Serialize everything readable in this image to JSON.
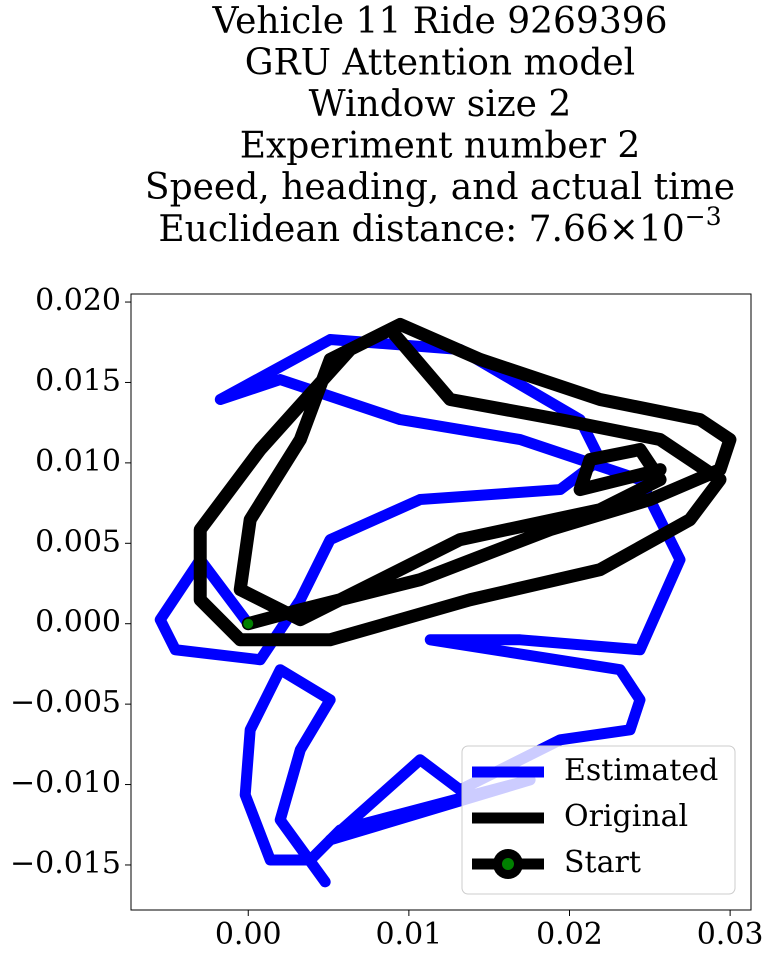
{
  "chart_data": {
    "type": "line",
    "title": [
      "Vehicle 11 Ride 9269396",
      "GRU Attention model",
      "Window size 2",
      "Experiment number 2",
      "Speed, heading, and actual time"
    ],
    "subtitle": {
      "text": "Euclidean distance: 7.66×10",
      "exponent": "−3"
    },
    "xlim": [
      -0.0073,
      0.0313
    ],
    "ylim": [
      -0.0178,
      0.0205
    ],
    "xticks": [
      {
        "value": 0,
        "label": "0.00"
      },
      {
        "value": 0.01,
        "label": "0.01"
      },
      {
        "value": 0.02,
        "label": "0.02"
      },
      {
        "value": 0.03,
        "label": "0.03"
      }
    ],
    "yticks": [
      {
        "value": -0.015,
        "label": "−0.015"
      },
      {
        "value": -0.01,
        "label": "−0.010"
      },
      {
        "value": -0.005,
        "label": "−0.005"
      },
      {
        "value": 0,
        "label": "0.000"
      },
      {
        "value": 0.005,
        "label": "0.005"
      },
      {
        "value": 0.01,
        "label": "0.010"
      },
      {
        "value": 0.015,
        "label": "0.015"
      },
      {
        "value": 0.02,
        "label": "0.020"
      }
    ],
    "grid": false,
    "legend": "lower right",
    "series": [
      {
        "name": "Estimated",
        "color": "#0000ff",
        "x": [
          0,
          -0.00299,
          -0.00548,
          -0.00454,
          0.00075,
          0.00324,
          0.0051,
          0.0107,
          0.01942,
          0.0219,
          0.02066,
          0.01319,
          0.0051,
          -0.00174,
          0.00199,
          0.00946,
          0.01693,
          0.02439,
          0.02688,
          0.02439,
          0.01693,
          0.01133,
          0.02315,
          0.02439,
          0.02377,
          0.01942,
          0.01319,
          0.0107,
          0.0051,
          0.01755,
          0.00573,
          0.00386,
          0.00137,
          -0.00019,
          0.00012,
          0.00199,
          0.0051,
          0.00324,
          0.00199,
          0.00479
        ],
        "values": [
          0,
          0.00398,
          0.00025,
          -0.00162,
          -0.00224,
          0.00149,
          0.00523,
          0.00772,
          0.00834,
          0.01021,
          0.01269,
          0.01705,
          0.01767,
          0.01394,
          0.01518,
          0.01269,
          0.01145,
          0.00896,
          0.00398,
          -0.00162,
          -0.001,
          -0.001,
          -0.00286,
          -0.00473,
          -0.0066,
          -0.00722,
          -0.01033,
          -0.00846,
          -0.01344,
          -0.00971,
          -0.01282,
          -0.01469,
          -0.01469,
          -0.01064,
          -0.0066,
          -0.00286,
          -0.00473,
          -0.00784,
          -0.0122,
          -0.01605
        ]
      },
      {
        "name": "Original",
        "color": "#000000",
        "x": [
          0,
          0.00324,
          0.0107,
          0.01879,
          0.02502,
          0.02937,
          0.02999,
          0.02813,
          0.0219,
          0.01444,
          0.00946,
          0.00635,
          0.00075,
          -0.00299,
          -0.00299,
          -0.0005,
          0.0051,
          0.01381,
          0.0219,
          0.0275,
          0.02937,
          0.02564,
          0.01942,
          0.01257,
          0.00884,
          0.0051,
          0.00324,
          0.00012,
          -0.0005,
          0.00324,
          0.01319,
          0.0219,
          0.02564,
          0.02439,
          0.02128,
          0.02066,
          0.02564
        ],
        "values": [
          0,
          0.00087,
          0.00274,
          0.00585,
          0.00772,
          0.00958,
          0.01145,
          0.01269,
          0.01394,
          0.01643,
          0.01861,
          0.01705,
          0.01083,
          0.00585,
          0.00149,
          -0.001,
          -0.001,
          0.00149,
          0.00336,
          0.00647,
          0.00896,
          0.01145,
          0.01269,
          0.01394,
          0.0183,
          0.01643,
          0.01145,
          0.00647,
          0.00212,
          0.00025,
          0.00523,
          0.00709,
          0.00896,
          0.01083,
          0.01021,
          0.00834,
          0.00958
        ]
      },
      {
        "name": "Start",
        "color": "#000000",
        "marker_color": "#008000",
        "x": [
          0
        ],
        "values": [
          0
        ]
      }
    ]
  }
}
